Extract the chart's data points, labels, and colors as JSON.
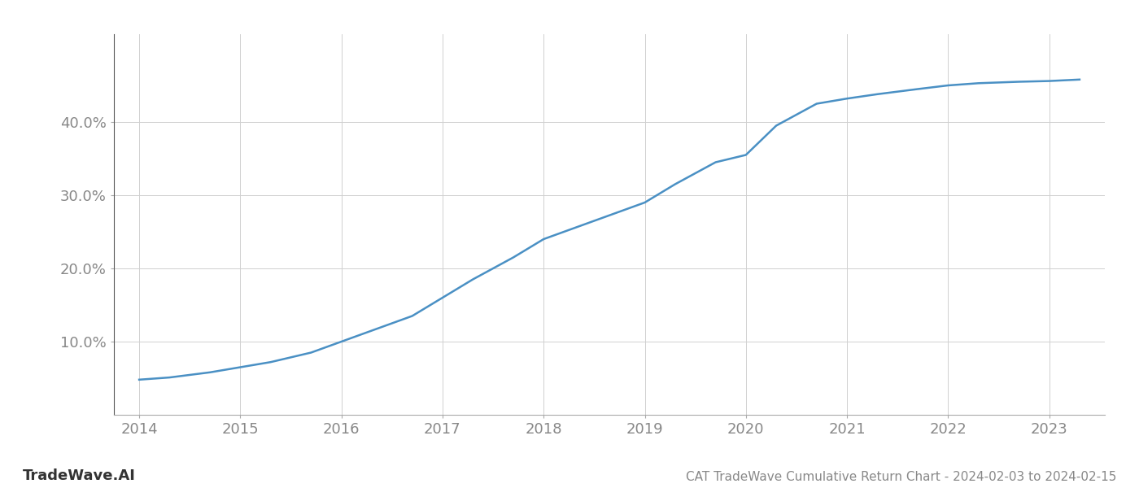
{
  "x_years": [
    2014.0,
    2014.3,
    2014.7,
    2015.0,
    2015.3,
    2015.7,
    2016.0,
    2016.3,
    2016.7,
    2017.0,
    2017.3,
    2017.7,
    2018.0,
    2018.3,
    2018.7,
    2019.0,
    2019.3,
    2019.7,
    2020.0,
    2020.3,
    2020.7,
    2021.0,
    2021.3,
    2021.7,
    2022.0,
    2022.3,
    2022.7,
    2023.0,
    2023.3
  ],
  "y_values": [
    4.8,
    5.1,
    5.8,
    6.5,
    7.2,
    8.5,
    10.0,
    11.5,
    13.5,
    16.0,
    18.5,
    21.5,
    24.0,
    25.5,
    27.5,
    29.0,
    31.5,
    34.5,
    35.5,
    39.5,
    42.5,
    43.2,
    43.8,
    44.5,
    45.0,
    45.3,
    45.5,
    45.6,
    45.8
  ],
  "line_color": "#4a90c4",
  "line_width": 1.8,
  "background_color": "#ffffff",
  "grid_color": "#d0d0d0",
  "title": "CAT TradeWave Cumulative Return Chart - 2024-02-03 to 2024-02-15",
  "watermark": "TradeWave.AI",
  "yticks": [
    10.0,
    20.0,
    30.0,
    40.0
  ],
  "xticks": [
    2014,
    2015,
    2016,
    2017,
    2018,
    2019,
    2020,
    2021,
    2022,
    2023
  ],
  "xlim": [
    2013.75,
    2023.55
  ],
  "ylim": [
    0,
    52
  ],
  "tick_fontsize": 13,
  "watermark_fontsize": 13,
  "title_fontsize": 11
}
